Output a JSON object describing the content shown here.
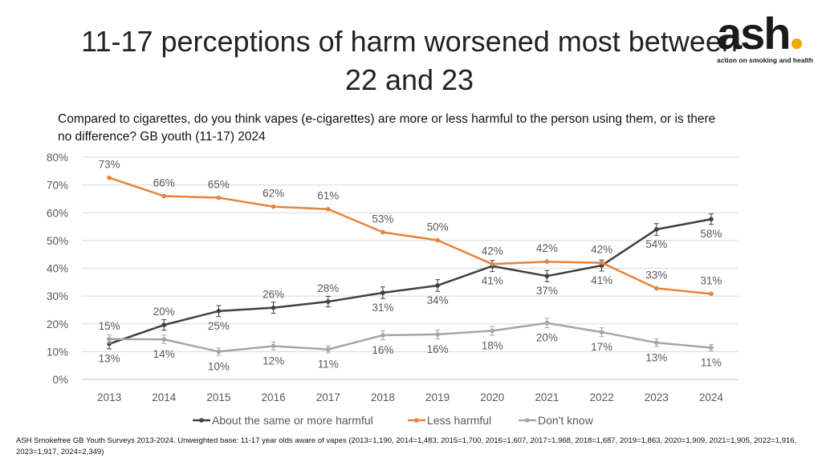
{
  "title": "11-17 perceptions of harm worsened most between 22 and 23",
  "logo": {
    "word": "ash",
    "tagline": "action on smoking and health",
    "accent_color": "#f2a900"
  },
  "question": "Compared to cigarettes, do you think vapes (e-cigarettes) are more or less harmful to the person using them, or is there no difference? GB youth (11-17) 2024",
  "footer": "ASH Smokefree GB Youth Surveys 2013-2024. Unweighted base: 11-17 year olds aware of vapes (2013=1,190, 2014=1,483, 2015=1,700, 2016=1,607, 2017=1,968, 2018=1,687, 2019=1,863, 2020=1,909, 2021=1,905, 2022=1,916, 2023=1,917, 2024=2,349)",
  "chart_data": {
    "type": "line",
    "categories": [
      "2013",
      "2014",
      "2015",
      "2016",
      "2017",
      "2018",
      "2019",
      "2020",
      "2021",
      "2022",
      "2023",
      "2024"
    ],
    "ylim": [
      0,
      80
    ],
    "yticks": [
      0,
      10,
      20,
      30,
      40,
      50,
      60,
      70,
      80
    ],
    "ytick_labels": [
      "0%",
      "10%",
      "20%",
      "30%",
      "40%",
      "50%",
      "60%",
      "70%",
      "80%"
    ],
    "grid": true,
    "error_bars": true,
    "legend_position": "bottom",
    "series": [
      {
        "name": "About the same or more harmful",
        "color": "#404040",
        "values": [
          12.8,
          19.6,
          24.6,
          25.8,
          28.0,
          31.2,
          33.8,
          40.8,
          37.2,
          41.0,
          54.0,
          57.7
        ],
        "errors": [
          1.8,
          1.9,
          2.0,
          2.0,
          1.9,
          2.1,
          2.1,
          2.0,
          2.0,
          2.0,
          2.1,
          1.9
        ],
        "labels": [
          "13%",
          "20%",
          "25%",
          "26%",
          "28%",
          "31%",
          "34%",
          "41%",
          "37%",
          "41%",
          "54%",
          "58%"
        ],
        "label_side": [
          "below",
          "above",
          "below",
          "above",
          "above",
          "below",
          "below",
          "below",
          "below",
          "below",
          "below",
          "below"
        ]
      },
      {
        "name": "Less harmful",
        "color": "#e8833a",
        "values": [
          72.6,
          66.0,
          65.4,
          62.2,
          61.3,
          53.0,
          50.1,
          41.5,
          42.4,
          42.0,
          32.8,
          30.8
        ],
        "errors": [
          0,
          0,
          0,
          0,
          0,
          0,
          0,
          0,
          0,
          0,
          0,
          0
        ],
        "labels": [
          "73%",
          "66%",
          "65%",
          "62%",
          "61%",
          "53%",
          "50%",
          "42%",
          "42%",
          "42%",
          "33%",
          "31%"
        ],
        "label_side": [
          "above",
          "above",
          "above",
          "above",
          "above",
          "above",
          "above",
          "above",
          "above",
          "above",
          "above",
          "above"
        ]
      },
      {
        "name": "Don't know",
        "color": "#a6a6a6",
        "values": [
          14.5,
          14.4,
          10.0,
          12.0,
          10.8,
          15.9,
          16.2,
          17.5,
          20.3,
          17.0,
          13.2,
          11.4
        ],
        "errors": [
          1.5,
          1.5,
          1.3,
          1.4,
          1.3,
          1.6,
          1.6,
          1.6,
          1.7,
          1.6,
          1.4,
          1.2
        ],
        "labels": [
          "15%",
          "14%",
          "10%",
          "12%",
          "11%",
          "16%",
          "16%",
          "18%",
          "20%",
          "17%",
          "13%",
          "11%"
        ],
        "label_side": [
          "above",
          "below",
          "below",
          "below",
          "below",
          "below",
          "below",
          "below",
          "below",
          "below",
          "below",
          "below"
        ]
      }
    ]
  }
}
